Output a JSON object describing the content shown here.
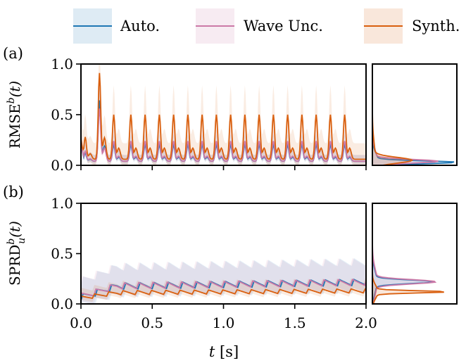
{
  "chart_data": [
    {
      "panel": "(a)",
      "type": "line",
      "ylabel": "RMSE^b(t)",
      "xlim": [
        0.0,
        2.0
      ],
      "ylim": [
        0.0,
        1.0
      ],
      "x_ticks": [
        0.0,
        0.5,
        1.0,
        1.5,
        2.0
      ],
      "y_ticks": [
        "0.0",
        "0.5",
        "1.0"
      ],
      "series": [
        {
          "name": "Auto.",
          "color": "#1f77b4",
          "baseline": 0.04,
          "peak_amp": 0.16,
          "first_peak": 0.6,
          "band": 0.05
        },
        {
          "name": "Wave Unc.",
          "color": "#cc79a7",
          "baseline": 0.04,
          "peak_amp": 0.2,
          "first_peak": 0.52,
          "band": 0.05
        },
        {
          "name": "Synth.",
          "color": "#d95f0e",
          "baseline": 0.06,
          "peak_amp": 0.44,
          "first_peak": 0.85,
          "band": 0.14
        }
      ],
      "peak_times": [
        0.03,
        0.13,
        0.23,
        0.35,
        0.45,
        0.55,
        0.65,
        0.75,
        0.85,
        0.95,
        1.05,
        1.15,
        1.25,
        1.35,
        1.45,
        1.55,
        1.65,
        1.75,
        1.85
      ]
    },
    {
      "panel": "(b)",
      "type": "line",
      "ylabel": "SPRD_u^b(t)",
      "xlabel": "t [s]",
      "xlim": [
        0.0,
        2.0
      ],
      "ylim": [
        0.0,
        1.0
      ],
      "x_ticks": [
        "0.0",
        "0.5",
        "1.0",
        "1.5",
        "2.0"
      ],
      "y_ticks": [
        "0.0",
        "0.5",
        "1.0"
      ],
      "series": [
        {
          "name": "Auto.",
          "color": "#1f77b4",
          "start": 0.05,
          "end": 0.2,
          "wiggle": 0.03,
          "band": 0.14
        },
        {
          "name": "Wave Unc.",
          "color": "#cc79a7",
          "start": 0.06,
          "end": 0.2,
          "wiggle": 0.03,
          "band": 0.14
        },
        {
          "name": "Synth.",
          "color": "#d95f0e",
          "start": 0.05,
          "end": 0.12,
          "wiggle": 0.02,
          "band": 0.06
        }
      ]
    }
  ],
  "legend": {
    "placement": "top",
    "entries": [
      {
        "label": "Auto.",
        "color": "#1f77b4"
      },
      {
        "label": "Wave Unc.",
        "color": "#cc79a7"
      },
      {
        "label": "Synth.",
        "color": "#d95f0e"
      }
    ]
  },
  "labels": {
    "panel_a": "(a)",
    "panel_b": "(b)",
    "ylabel_a_main": "RMSE",
    "ylabel_a_sup": "b",
    "ylabel_a_arg": "(t)",
    "ylabel_b_main": "SPRD",
    "ylabel_b_sup": "b",
    "ylabel_b_sub": "u",
    "ylabel_b_arg": "(t)",
    "xlabel_var": "t",
    "xlabel_unit": " [s]"
  }
}
